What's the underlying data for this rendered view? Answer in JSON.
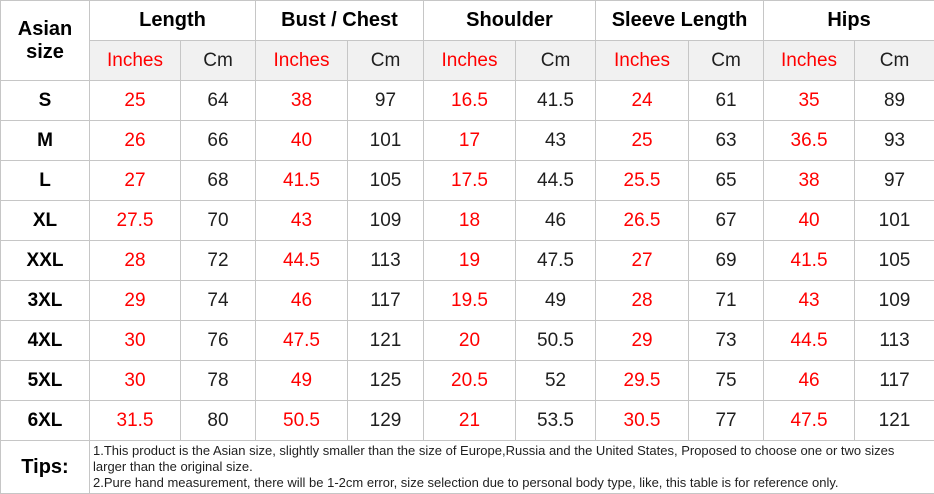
{
  "table": {
    "row_label_header": "Asian size",
    "groups": [
      {
        "label": "Length"
      },
      {
        "label": "Bust / Chest"
      },
      {
        "label": "Shoulder"
      },
      {
        "label": "Sleeve Length"
      },
      {
        "label": "Hips"
      }
    ],
    "unit_headers": {
      "inches": "Inches",
      "cm": "Cm"
    },
    "rows": [
      {
        "size": "S",
        "values": [
          "25",
          "64",
          "38",
          "97",
          "16.5",
          "41.5",
          "24",
          "61",
          "35",
          "89"
        ]
      },
      {
        "size": "M",
        "values": [
          "26",
          "66",
          "40",
          "101",
          "17",
          "43",
          "25",
          "63",
          "36.5",
          "93"
        ]
      },
      {
        "size": "L",
        "values": [
          "27",
          "68",
          "41.5",
          "105",
          "17.5",
          "44.5",
          "25.5",
          "65",
          "38",
          "97"
        ]
      },
      {
        "size": "XL",
        "values": [
          "27.5",
          "70",
          "43",
          "109",
          "18",
          "46",
          "26.5",
          "67",
          "40",
          "101"
        ]
      },
      {
        "size": "XXL",
        "values": [
          "28",
          "72",
          "44.5",
          "113",
          "19",
          "47.5",
          "27",
          "69",
          "41.5",
          "105"
        ]
      },
      {
        "size": "3XL",
        "values": [
          "29",
          "74",
          "46",
          "117",
          "19.5",
          "49",
          "28",
          "71",
          "43",
          "109"
        ]
      },
      {
        "size": "4XL",
        "values": [
          "30",
          "76",
          "47.5",
          "121",
          "20",
          "50.5",
          "29",
          "73",
          "44.5",
          "113"
        ]
      },
      {
        "size": "5XL",
        "values": [
          "30",
          "78",
          "49",
          "125",
          "20.5",
          "52",
          "29.5",
          "75",
          "46",
          "117"
        ]
      },
      {
        "size": "6XL",
        "values": [
          "31.5",
          "80",
          "50.5",
          "129",
          "21",
          "53.5",
          "30.5",
          "77",
          "47.5",
          "121"
        ]
      }
    ],
    "tips": {
      "label": "Tips:",
      "note1": "1.This product is the Asian size, slightly smaller than the size of Europe,Russia and the United States, Proposed to choose one or two sizes larger than the original size.",
      "note2": "2.Pure hand measurement, there will be 1-2cm error, size selection due to personal body type, like, this table is for reference only."
    },
    "colors": {
      "accent_red": "#ff0000",
      "text_ink": "#1f1f1f",
      "border": "#c6c6c6",
      "unit_row_bg": "#f1f1f1"
    }
  }
}
